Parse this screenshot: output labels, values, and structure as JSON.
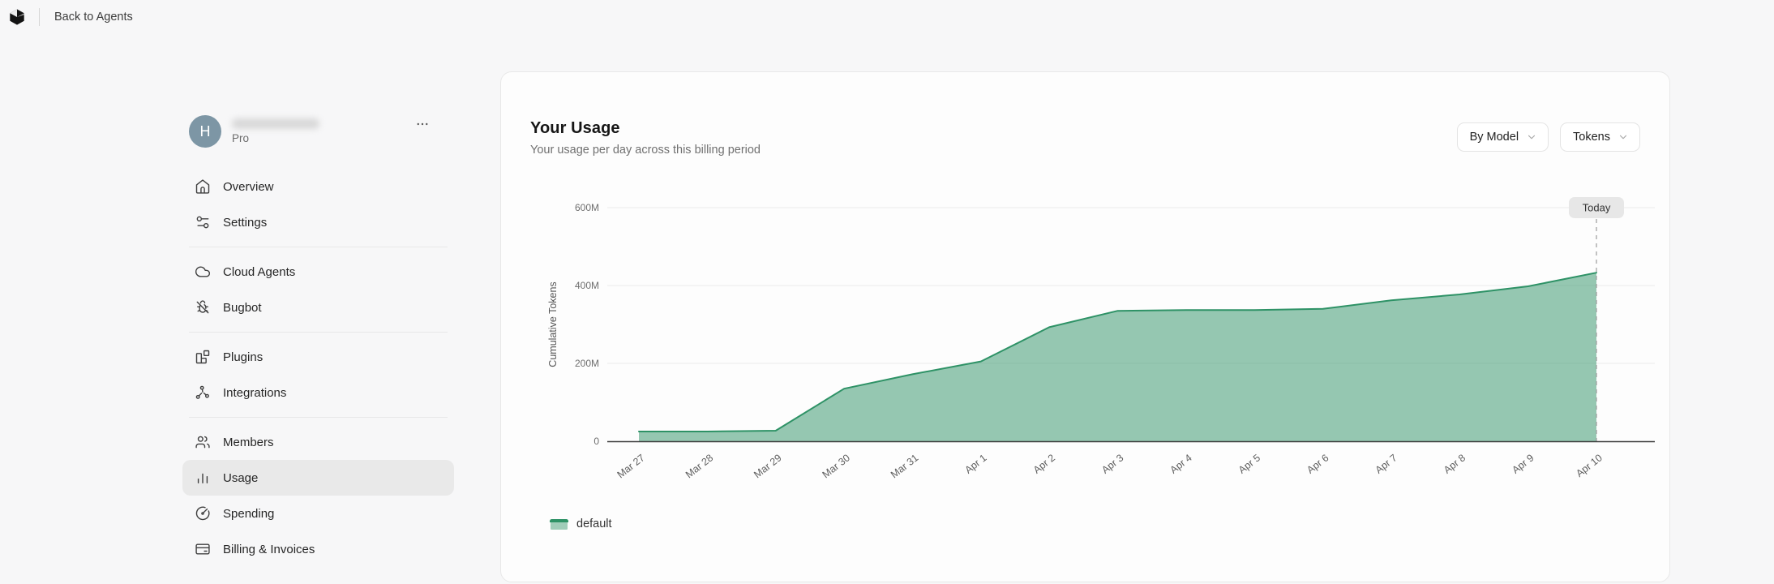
{
  "topbar": {
    "back_label": "Back to Agents"
  },
  "sidebar": {
    "avatar_initial": "H",
    "plan": "Pro",
    "groups": [
      {
        "items": [
          {
            "label": "Overview",
            "icon": "home"
          },
          {
            "label": "Settings",
            "icon": "sliders"
          }
        ]
      },
      {
        "items": [
          {
            "label": "Cloud Agents",
            "icon": "cloud"
          },
          {
            "label": "Bugbot",
            "icon": "bug-off"
          }
        ]
      },
      {
        "items": [
          {
            "label": "Plugins",
            "icon": "blocks"
          },
          {
            "label": "Integrations",
            "icon": "nodes"
          }
        ]
      },
      {
        "items": [
          {
            "label": "Members",
            "icon": "users"
          },
          {
            "label": "Usage",
            "icon": "bar-chart",
            "active": true
          },
          {
            "label": "Spending",
            "icon": "gauge"
          },
          {
            "label": "Billing & Invoices",
            "icon": "credit-card"
          }
        ]
      }
    ]
  },
  "panel": {
    "title": "Your Usage",
    "subtitle": "Your usage per day across this billing period",
    "filters": [
      {
        "label": "By Model"
      },
      {
        "label": "Tokens"
      }
    ],
    "today_label": "Today",
    "legend": [
      {
        "label": "default",
        "color": "#2e9266"
      }
    ]
  },
  "chart_data": {
    "type": "area",
    "title": "Your Usage",
    "ylabel": "Cumulative Tokens",
    "x": [
      "Mar 27",
      "Mar 28",
      "Mar 29",
      "Mar 30",
      "Mar 31",
      "Apr 1",
      "Apr 2",
      "Apr 3",
      "Apr 4",
      "Apr 5",
      "Apr 6",
      "Apr 7",
      "Apr 8",
      "Apr 9",
      "Apr 10"
    ],
    "series": [
      {
        "name": "default",
        "values": [
          25,
          25,
          27,
          135,
          172,
          205,
          293,
          335,
          337,
          337,
          340,
          362,
          377,
          398,
          433
        ]
      }
    ],
    "unit": "M tokens",
    "ylim": [
      0,
      600
    ],
    "y_ticks": [
      0,
      200,
      400,
      600
    ],
    "y_tick_labels": [
      "0",
      "200M",
      "400M",
      "600M"
    ],
    "grid": true,
    "legend_position": "bottom",
    "annotations": [
      {
        "label": "Today",
        "x": "Apr 10"
      }
    ],
    "colors": {
      "line": "#2e9266",
      "fill": "rgba(46,146,102,0.5)",
      "grid": "#ececec",
      "axis": "#3d3d3d",
      "tick_text": "#6e6e6e",
      "today_line": "#9b9b9b",
      "today_badge_bg": "#e7e7e7"
    }
  }
}
